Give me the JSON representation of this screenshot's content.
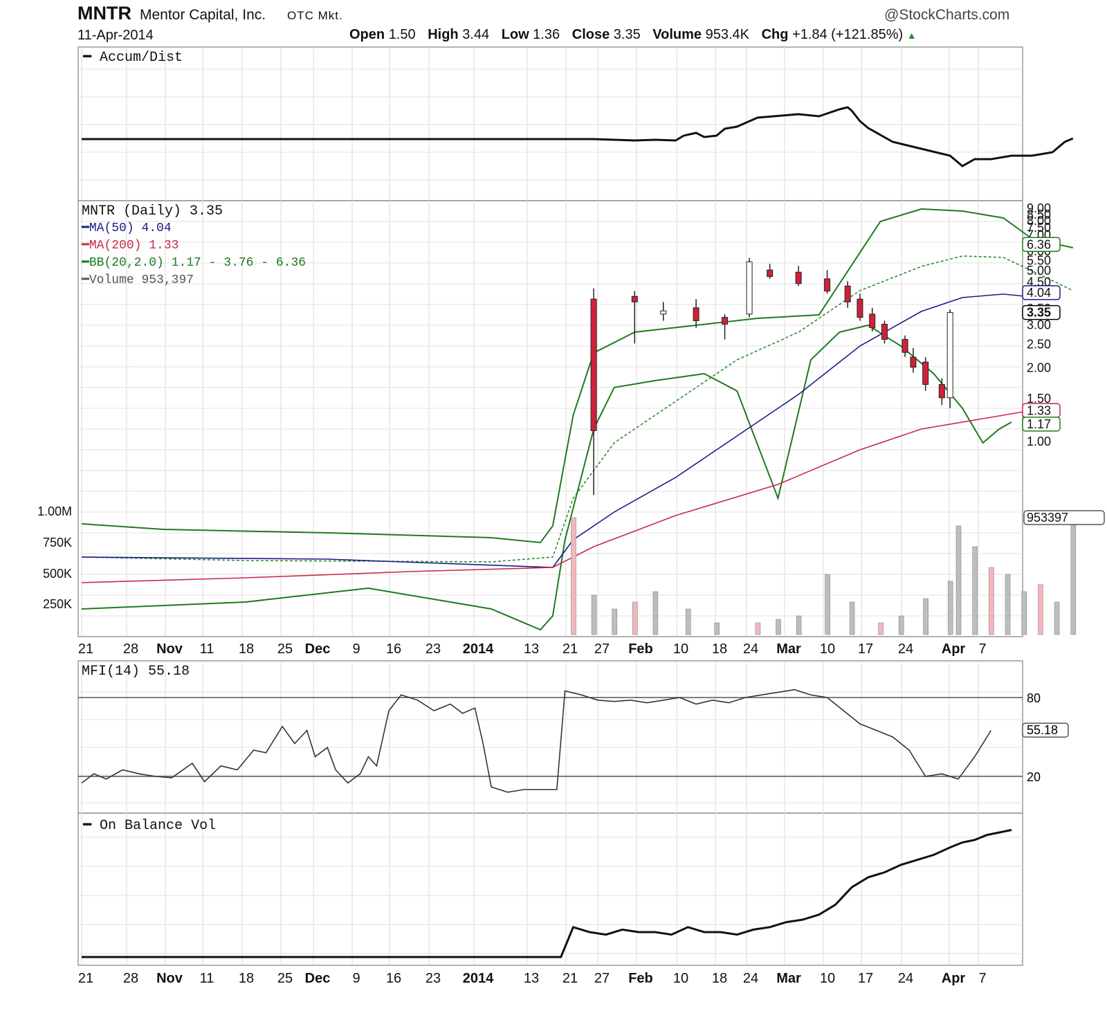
{
  "header": {
    "symbol": "MNTR",
    "company": "Mentor Capital, Inc.",
    "market": "OTC Mkt.",
    "watermark": "@StockCharts.com",
    "date": "11-Apr-2014",
    "open_label": "Open",
    "open": "1.50",
    "high_label": "High",
    "high": "3.44",
    "low_label": "Low",
    "low": "1.36",
    "close_label": "Close",
    "close": "3.35",
    "volume_label": "Volume",
    "volume": "953.4K",
    "chg_label": "Chg",
    "chg": "+1.84 (+121.85%)"
  },
  "chart_data": [
    {
      "type": "line",
      "panel": "Accum/Dist",
      "legend": "Accum/Dist",
      "x_labels": [
        "21",
        "28",
        "Nov",
        "11",
        "18",
        "25",
        "Dec",
        "9",
        "16",
        "23",
        "2014",
        "13",
        "21",
        "27",
        "Feb",
        "10",
        "18",
        "24",
        "Mar",
        "10",
        "17",
        "24",
        "Apr",
        "7"
      ],
      "series": [
        {
          "name": "Accum/Dist",
          "color": "#111111",
          "points": [
            [
              0,
              201
            ],
            [
              125,
              201
            ],
            [
              130,
              202
            ],
            [
              135,
              203
            ],
            [
              140,
              202
            ],
            [
              145,
              203
            ],
            [
              147,
              196
            ],
            [
              150,
              192
            ],
            [
              152,
              198
            ],
            [
              155,
              196
            ],
            [
              157,
              186
            ],
            [
              160,
              183
            ],
            [
              165,
              170
            ],
            [
              175,
              165
            ],
            [
              180,
              168
            ],
            [
              185,
              158
            ],
            [
              187,
              155
            ],
            [
              188,
              160
            ],
            [
              190,
              175
            ],
            [
              192,
              185
            ],
            [
              195,
              195
            ],
            [
              198,
              205
            ],
            [
              205,
              215
            ],
            [
              212,
              225
            ],
            [
              215,
              240
            ],
            [
              218,
              230
            ],
            [
              222,
              230
            ],
            [
              227,
              225
            ],
            [
              232,
              225
            ],
            [
              237,
              220
            ],
            [
              240,
              205
            ],
            [
              242,
              200
            ]
          ]
        }
      ],
      "y_scale": "unlabeled"
    },
    {
      "type": "candlestick",
      "panel": "Price",
      "title": "MNTR (Daily) 3.35",
      "legend": [
        {
          "label": "MA(50) 4.04",
          "color": "#1a1a8a"
        },
        {
          "label": "MA(200) 1.33",
          "color": "#c8284a"
        },
        {
          "label": "BB(20,2.0) 1.17 - 3.76 - 6.36",
          "color": "#1e7a1e"
        },
        {
          "label": "Volume 953,397",
          "color": "#555555"
        }
      ],
      "y_scale": "log",
      "y_ticks": [
        "9.00",
        "8.50",
        "8.00",
        "7.50",
        "7.00",
        "6.50",
        "6.00",
        "5.50",
        "5.00",
        "4.50",
        "4.00",
        "3.50",
        "3.00",
        "2.50",
        "2.00",
        "1.50",
        "1.00"
      ],
      "volume_ticks": [
        "1.00M",
        "750K",
        "500K",
        "250K"
      ],
      "right_tags": [
        {
          "label": "6.36",
          "value": 6.36,
          "color": "#1e7a1e"
        },
        {
          "label": "4.04",
          "value": 4.04,
          "color": "#1a1a8a"
        },
        {
          "label": "3.35",
          "value": 3.35,
          "color": "#000000"
        },
        {
          "label": "1.33",
          "value": 1.33,
          "color": "#c8284a"
        },
        {
          "label": "1.17",
          "value": 1.17,
          "color": "#1e7a1e"
        }
      ],
      "volume_tag": "953397",
      "candles": [
        {
          "d": 125,
          "o": 3.8,
          "h": 4.2,
          "l": 0.6,
          "c": 1.1
        },
        {
          "d": 135,
          "o": 3.9,
          "h": 4.1,
          "l": 2.5,
          "c": 3.7
        },
        {
          "d": 142,
          "o": 3.3,
          "h": 3.7,
          "l": 3.1,
          "c": 3.4
        },
        {
          "d": 150,
          "o": 3.5,
          "h": 3.8,
          "l": 2.9,
          "c": 3.1
        },
        {
          "d": 157,
          "o": 3.2,
          "h": 3.3,
          "l": 2.6,
          "c": 3.0
        },
        {
          "d": 163,
          "o": 3.3,
          "h": 5.6,
          "l": 3.2,
          "c": 5.4
        },
        {
          "d": 168,
          "o": 5.0,
          "h": 5.3,
          "l": 4.6,
          "c": 4.7
        },
        {
          "d": 175,
          "o": 4.9,
          "h": 5.2,
          "l": 4.3,
          "c": 4.4
        },
        {
          "d": 182,
          "o": 4.6,
          "h": 5.0,
          "l": 4.0,
          "c": 4.1
        },
        {
          "d": 187,
          "o": 4.3,
          "h": 4.5,
          "l": 3.5,
          "c": 3.7
        },
        {
          "d": 190,
          "o": 3.8,
          "h": 4.0,
          "l": 3.1,
          "c": 3.2
        },
        {
          "d": 193,
          "o": 3.3,
          "h": 3.5,
          "l": 2.8,
          "c": 2.9
        },
        {
          "d": 196,
          "o": 3.0,
          "h": 3.1,
          "l": 2.5,
          "c": 2.6
        },
        {
          "d": 201,
          "o": 2.6,
          "h": 2.7,
          "l": 2.2,
          "c": 2.3
        },
        {
          "d": 203,
          "o": 2.2,
          "h": 2.4,
          "l": 1.9,
          "c": 2.0
        },
        {
          "d": 206,
          "o": 2.1,
          "h": 2.2,
          "l": 1.6,
          "c": 1.7
        },
        {
          "d": 210,
          "o": 1.7,
          "h": 1.8,
          "l": 1.4,
          "c": 1.5
        },
        {
          "d": 212,
          "o": 1.5,
          "h": 3.44,
          "l": 1.36,
          "c": 3.35
        }
      ]
    },
    {
      "type": "line",
      "panel": "MFI",
      "legend": "MFI(14) 55.18",
      "y_ticks": [
        "80",
        "20"
      ],
      "last_value": "55.18",
      "series": [
        {
          "name": "MFI(14)",
          "color": "#333333",
          "points": [
            [
              0,
              15
            ],
            [
              3,
              22
            ],
            [
              6,
              18
            ],
            [
              10,
              25
            ],
            [
              14,
              22
            ],
            [
              18,
              20
            ],
            [
              22,
              19
            ],
            [
              27,
              30
            ],
            [
              30,
              16
            ],
            [
              34,
              28
            ],
            [
              38,
              25
            ],
            [
              42,
              40
            ],
            [
              45,
              38
            ],
            [
              49,
              58
            ],
            [
              52,
              45
            ],
            [
              55,
              55
            ],
            [
              57,
              35
            ],
            [
              60,
              42
            ],
            [
              62,
              25
            ],
            [
              65,
              15
            ],
            [
              68,
              22
            ],
            [
              70,
              35
            ],
            [
              72,
              28
            ],
            [
              75,
              70
            ],
            [
              78,
              82
            ],
            [
              82,
              78
            ],
            [
              86,
              70
            ],
            [
              90,
              75
            ],
            [
              93,
              68
            ],
            [
              96,
              72
            ],
            [
              98,
              45
            ],
            [
              100,
              12
            ],
            [
              104,
              8
            ],
            [
              108,
              10
            ],
            [
              112,
              10
            ],
            [
              116,
              10
            ],
            [
              118,
              85
            ],
            [
              122,
              82
            ],
            [
              126,
              78
            ],
            [
              130,
              77
            ],
            [
              134,
              78
            ],
            [
              138,
              76
            ],
            [
              142,
              78
            ],
            [
              146,
              80
            ],
            [
              150,
              75
            ],
            [
              154,
              78
            ],
            [
              158,
              76
            ],
            [
              162,
              80
            ],
            [
              166,
              82
            ],
            [
              170,
              84
            ],
            [
              174,
              86
            ],
            [
              178,
              82
            ],
            [
              182,
              80
            ],
            [
              186,
              70
            ],
            [
              190,
              60
            ],
            [
              194,
              55
            ],
            [
              198,
              50
            ],
            [
              202,
              40
            ],
            [
              206,
              20
            ],
            [
              210,
              22
            ],
            [
              214,
              18
            ],
            [
              218,
              35
            ],
            [
              222,
              55
            ]
          ]
        }
      ]
    },
    {
      "type": "line",
      "panel": "On Balance Vol",
      "legend": "On Balance Vol",
      "series": [
        {
          "name": "On Balance Vol",
          "color": "#111111",
          "points": [
            [
              0,
              0
            ],
            [
              117,
              0
            ],
            [
              120,
              12
            ],
            [
              124,
              10
            ],
            [
              128,
              9
            ],
            [
              132,
              11
            ],
            [
              136,
              10
            ],
            [
              140,
              10
            ],
            [
              144,
              9
            ],
            [
              148,
              12
            ],
            [
              152,
              10
            ],
            [
              156,
              10
            ],
            [
              160,
              9
            ],
            [
              164,
              11
            ],
            [
              168,
              12
            ],
            [
              172,
              14
            ],
            [
              176,
              15
            ],
            [
              180,
              17
            ],
            [
              184,
              21
            ],
            [
              188,
              28
            ],
            [
              192,
              32
            ],
            [
              196,
              34
            ],
            [
              200,
              37
            ],
            [
              204,
              39
            ],
            [
              208,
              41
            ],
            [
              212,
              44
            ],
            [
              215,
              46
            ],
            [
              218,
              47
            ],
            [
              221,
              49
            ],
            [
              224,
              50
            ],
            [
              227,
              51
            ]
          ]
        }
      ],
      "y_scale": "unlabeled"
    }
  ]
}
